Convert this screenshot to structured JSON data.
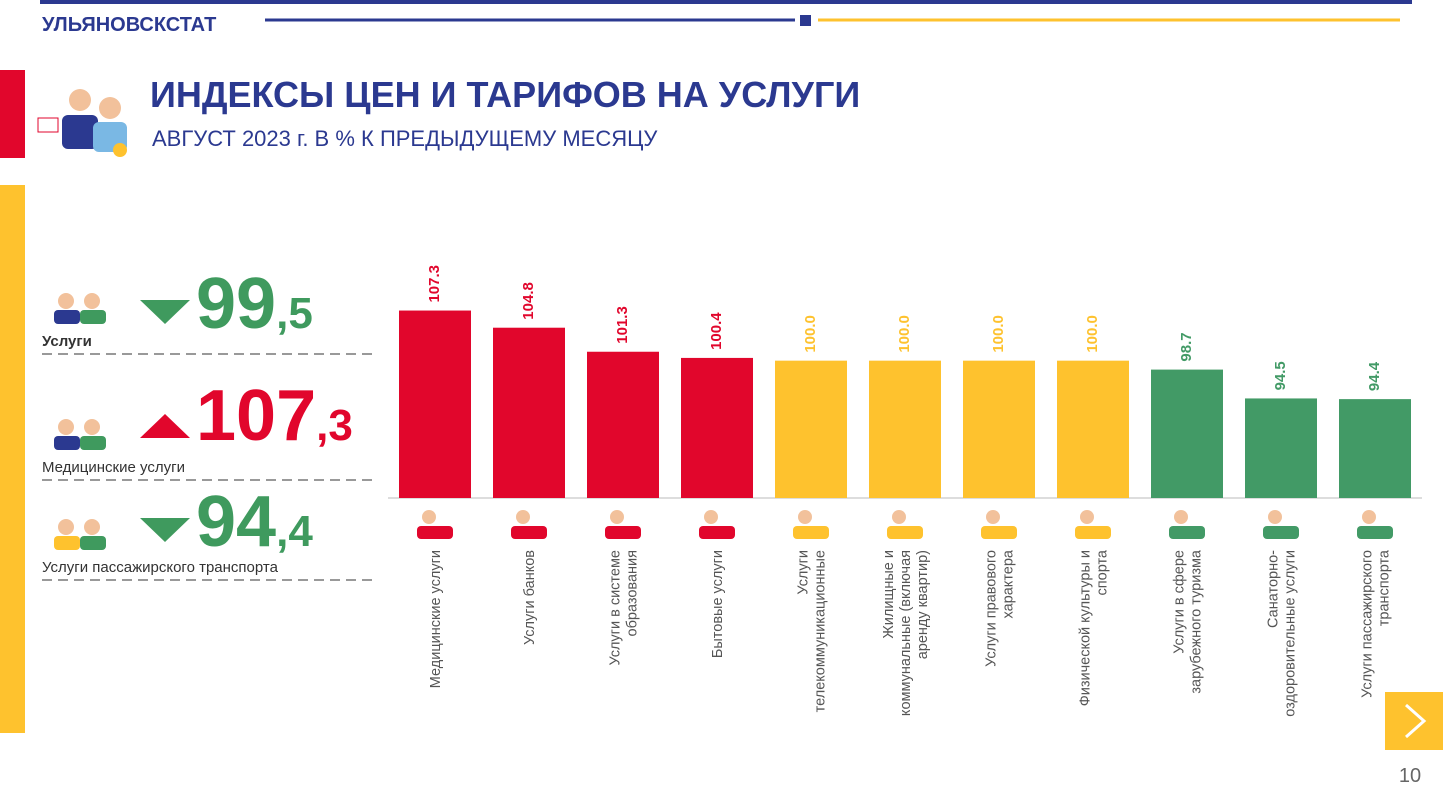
{
  "header": {
    "org": "УЛЬЯНОВСКСТАТ",
    "title": "ИНДЕКСЫ ЦЕН И ТАРИФОВ НА УСЛУГИ",
    "subtitle": "АВГУСТ 2023 г. В % К ПРЕДЫДУЩЕМУ МЕСЯЦУ"
  },
  "kpis": [
    {
      "label": "Услуги",
      "whole": "99",
      "decimal": ",5",
      "direction": "down",
      "color": "#3f9a5e"
    },
    {
      "label": "Медицинские услуги",
      "whole": "107",
      "decimal": ",3",
      "direction": "up",
      "color": "#e1062c"
    },
    {
      "label": "Услуги пассажирского транспорта",
      "whole": "94",
      "decimal": ",4",
      "direction": "down",
      "color": "#3f9a5e"
    }
  ],
  "chart_data": {
    "type": "bar",
    "categories": [
      "Медицинские услуги",
      "Услуги банков",
      "Услуги в системе образования",
      "Бытовые услуги",
      "Услуги телекоммуникационные",
      "Жилищные и коммунальные (включая аренду квартир)",
      "Услуги правового характера",
      "Физической культуры и спорта",
      "Услуги в сфере зарубежного туризма",
      "Санаторно-оздоровительные услуги",
      "Услуги пассажирского транспорта"
    ],
    "values": [
      107.3,
      104.8,
      101.3,
      100.4,
      100.0,
      100.0,
      100.0,
      100.0,
      98.7,
      94.5,
      94.4
    ],
    "value_labels": [
      "107.3",
      "104.8",
      "101.3",
      "100.4",
      "100.0",
      "100.0",
      "100.0",
      "100.0",
      "98.7",
      "94.5",
      "94.4"
    ],
    "colors": [
      "#e1062c",
      "#e1062c",
      "#e1062c",
      "#e1062c",
      "#fec22e",
      "#fec22e",
      "#fec22e",
      "#fec22e",
      "#429a66",
      "#429a66",
      "#429a66"
    ],
    "ylim": [
      80,
      110
    ]
  },
  "footer": {
    "page_number": "10"
  }
}
